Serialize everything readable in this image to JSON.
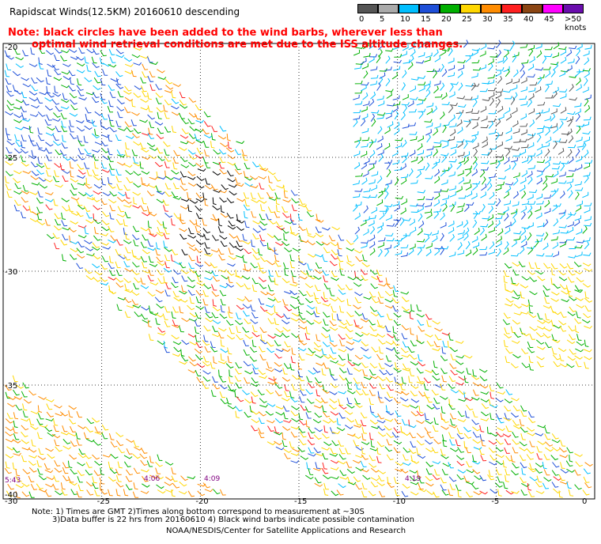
{
  "title": "Rapidscat Winds(12.5KM) 20160610 descending",
  "note_line1": "Note: black circles have been added to the wind barbs, wherever less than",
  "note_line2": "optimal wind retrieval conditions are met due to the ISS altitude changes.",
  "legend": {
    "labels": [
      "0",
      "5",
      "10",
      "15",
      "20",
      "25",
      "30",
      "35",
      "40",
      "45",
      ">50 knots"
    ],
    "colors": [
      "#555555",
      "#aaaaaa",
      "#00bfff",
      "#1e4fd8",
      "#00b000",
      "#ffd700",
      "#ff8c00",
      "#ff2020",
      "#8b4513",
      "#ff00ff",
      "#6a0dad"
    ]
  },
  "map": {
    "lat_labels": [
      "-20",
      "-25",
      "-30",
      "-35",
      "-40"
    ],
    "lon_labels": [
      "-30",
      "-25",
      "-20",
      "-15",
      "-10",
      "-5",
      "0"
    ],
    "time_labels": [
      "5:43",
      "4:06",
      "4:09",
      "4:19"
    ]
  },
  "footer": {
    "line1": "Note: 1) Times are GMT 2)Times along bottom correspond to measurement at ~30S",
    "line2": "3)Data buffer is 22 hrs from 20160610 4) Black wind barbs indicate possible contamination",
    "line3": "NOAA/NESDIS/Center for Satellite Applications and Research"
  }
}
